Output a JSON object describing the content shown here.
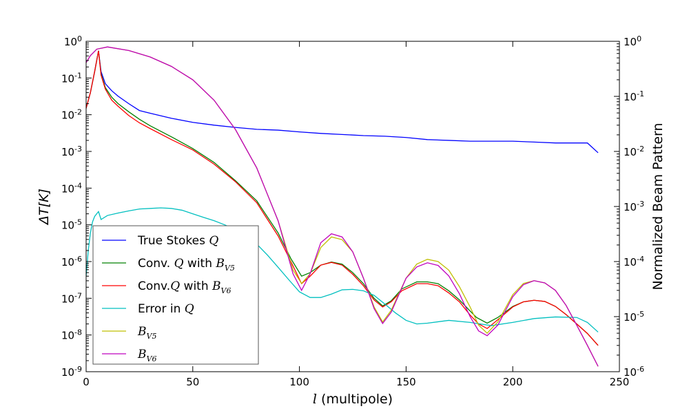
{
  "chart_data": {
    "type": "line",
    "xlabel_var": "l",
    "xlabel_text": " (multipole)",
    "ylabel_left": "ΔT[K]",
    "ylabel_right": "Normalized Beam Pattern",
    "xlim": [
      0,
      250
    ],
    "ylim_left": [
      1e-09,
      1
    ],
    "ylim_right": [
      1e-06,
      1
    ],
    "yscale": "log",
    "grid": false,
    "legend_position": "lower-left",
    "x_ticks": [
      "0",
      "50",
      "100",
      "150",
      "200",
      "250"
    ],
    "y_ticks_left": [
      {
        "base": "10",
        "exp": "0"
      },
      {
        "base": "10",
        "exp": "-1"
      },
      {
        "base": "10",
        "exp": "-2"
      },
      {
        "base": "10",
        "exp": "-3"
      },
      {
        "base": "10",
        "exp": "-4"
      },
      {
        "base": "10",
        "exp": "-5"
      },
      {
        "base": "10",
        "exp": "-6"
      },
      {
        "base": "10",
        "exp": "-7"
      },
      {
        "base": "10",
        "exp": "-8"
      },
      {
        "base": "10",
        "exp": "-9"
      }
    ],
    "y_ticks_right": [
      {
        "base": "10",
        "exp": "0"
      },
      {
        "base": "10",
        "exp": "-1"
      },
      {
        "base": "10",
        "exp": "-2"
      },
      {
        "base": "10",
        "exp": "-3"
      },
      {
        "base": "10",
        "exp": "-4"
      },
      {
        "base": "10",
        "exp": "-5"
      },
      {
        "base": "10",
        "exp": "-6"
      }
    ],
    "series": [
      {
        "name": "True Stokes Q",
        "legend_text": "True Stokes ",
        "legend_math": "Q",
        "legend_tail": "",
        "color": "#0000ff",
        "axis": "left",
        "points": [
          [
            0,
            0.015
          ],
          [
            2,
            0.04
          ],
          [
            4,
            0.15
          ],
          [
            5.8,
            0.55
          ],
          [
            7,
            0.15
          ],
          [
            9,
            0.07
          ],
          [
            12,
            0.045
          ],
          [
            15,
            0.032
          ],
          [
            20,
            0.02
          ],
          [
            25,
            0.013
          ],
          [
            30,
            0.011
          ],
          [
            40,
            0.008
          ],
          [
            50,
            0.0062
          ],
          [
            60,
            0.0052
          ],
          [
            70,
            0.0045
          ],
          [
            80,
            0.004
          ],
          [
            90,
            0.0038
          ],
          [
            100,
            0.0034
          ],
          [
            110,
            0.0031
          ],
          [
            120,
            0.0029
          ],
          [
            130,
            0.0027
          ],
          [
            140,
            0.0026
          ],
          [
            150,
            0.0024
          ],
          [
            160,
            0.0021
          ],
          [
            170,
            0.002
          ],
          [
            180,
            0.0019
          ],
          [
            190,
            0.0019
          ],
          [
            200,
            0.0019
          ],
          [
            210,
            0.0018
          ],
          [
            220,
            0.0017
          ],
          [
            230,
            0.0017
          ],
          [
            235,
            0.0017
          ],
          [
            240,
            0.00092
          ]
        ]
      },
      {
        "name": "Conv. Q with B_V5",
        "legend_text": "Conv. ",
        "legend_math": "Q",
        "legend_tail": " with ",
        "legend_sub_base": "B",
        "legend_sub": "V5",
        "color": "#008000",
        "axis": "left",
        "points": [
          [
            0,
            0.015
          ],
          [
            2,
            0.04
          ],
          [
            4,
            0.15
          ],
          [
            5.8,
            0.55
          ],
          [
            7,
            0.13
          ],
          [
            9,
            0.055
          ],
          [
            12,
            0.03
          ],
          [
            15,
            0.02
          ],
          [
            20,
            0.012
          ],
          [
            25,
            0.0075
          ],
          [
            30,
            0.005
          ],
          [
            40,
            0.0025
          ],
          [
            50,
            0.0012
          ],
          [
            60,
            0.0005
          ],
          [
            70,
            0.00016
          ],
          [
            80,
            4.5e-05
          ],
          [
            90,
            6e-06
          ],
          [
            96,
            1.2e-06
          ],
          [
            101,
            4e-07
          ],
          [
            105,
            5e-07
          ],
          [
            110,
            8e-07
          ],
          [
            115,
            9.7e-07
          ],
          [
            120,
            8.5e-07
          ],
          [
            125,
            5e-07
          ],
          [
            130,
            2.5e-07
          ],
          [
            135,
            1e-07
          ],
          [
            139,
            6.2e-08
          ],
          [
            143,
            8.5e-08
          ],
          [
            148,
            1.8e-07
          ],
          [
            155,
            2.8e-07
          ],
          [
            160,
            2.8e-07
          ],
          [
            165,
            2.5e-07
          ],
          [
            170,
            1.6e-07
          ],
          [
            175,
            9e-08
          ],
          [
            180,
            4.5e-08
          ],
          [
            183,
            3e-08
          ],
          [
            188,
            2.1e-08
          ],
          [
            193,
            3e-08
          ],
          [
            200,
            6e-08
          ],
          [
            205,
            8e-08
          ],
          [
            210,
            8.8e-08
          ],
          [
            215,
            8.2e-08
          ],
          [
            220,
            6e-08
          ],
          [
            225,
            3.6e-08
          ],
          [
            230,
            2e-08
          ],
          [
            235,
            1.1e-08
          ],
          [
            240,
            5.2e-09
          ]
        ]
      },
      {
        "name": "Conv.Q with B_V6",
        "legend_text": "Conv.",
        "legend_math": "Q",
        "legend_tail": " with ",
        "legend_sub_base": "B",
        "legend_sub": "V6",
        "color": "#ff0000",
        "axis": "left",
        "points": [
          [
            0,
            0.015
          ],
          [
            2,
            0.04
          ],
          [
            4,
            0.15
          ],
          [
            5.8,
            0.55
          ],
          [
            7,
            0.12
          ],
          [
            9,
            0.05
          ],
          [
            12,
            0.025
          ],
          [
            15,
            0.017
          ],
          [
            20,
            0.0095
          ],
          [
            25,
            0.006
          ],
          [
            30,
            0.0042
          ],
          [
            40,
            0.0021
          ],
          [
            50,
            0.0011
          ],
          [
            60,
            0.00045
          ],
          [
            70,
            0.00015
          ],
          [
            80,
            4e-05
          ],
          [
            90,
            5e-06
          ],
          [
            96,
            1e-06
          ],
          [
            101,
            2.5e-07
          ],
          [
            105,
            4e-07
          ],
          [
            110,
            8e-07
          ],
          [
            115,
            9.5e-07
          ],
          [
            120,
            8e-07
          ],
          [
            125,
            4.5e-07
          ],
          [
            130,
            2.2e-07
          ],
          [
            135,
            9e-08
          ],
          [
            139,
            5.8e-08
          ],
          [
            143,
            8e-08
          ],
          [
            148,
            1.6e-07
          ],
          [
            155,
            2.5e-07
          ],
          [
            160,
            2.5e-07
          ],
          [
            165,
            2.2e-07
          ],
          [
            170,
            1.4e-07
          ],
          [
            175,
            8e-08
          ],
          [
            180,
            3.5e-08
          ],
          [
            184,
            2e-08
          ],
          [
            188,
            1.5e-08
          ],
          [
            193,
            2.6e-08
          ],
          [
            200,
            5.8e-08
          ],
          [
            205,
            8e-08
          ],
          [
            210,
            8.8e-08
          ],
          [
            215,
            8.2e-08
          ],
          [
            220,
            6e-08
          ],
          [
            225,
            3.6e-08
          ],
          [
            230,
            2e-08
          ],
          [
            235,
            1.1e-08
          ],
          [
            240,
            5.2e-09
          ]
        ]
      },
      {
        "name": "Error in Q",
        "legend_text": "Error in ",
        "legend_math": "Q",
        "legend_tail": "",
        "color": "#00bfbf",
        "axis": "left",
        "points": [
          [
            0,
            4e-07
          ],
          [
            1,
            2e-06
          ],
          [
            2,
            6e-06
          ],
          [
            3,
            1.2e-05
          ],
          [
            4,
            1.7e-05
          ],
          [
            5.8,
            2.3e-05
          ],
          [
            7,
            1.4e-05
          ],
          [
            10,
            1.8e-05
          ],
          [
            15,
            2.1e-05
          ],
          [
            20,
            2.4e-05
          ],
          [
            25,
            2.7e-05
          ],
          [
            30,
            2.8e-05
          ],
          [
            35,
            2.9e-05
          ],
          [
            40,
            2.8e-05
          ],
          [
            45,
            2.5e-05
          ],
          [
            50,
            2e-05
          ],
          [
            55,
            1.6e-05
          ],
          [
            60,
            1.3e-05
          ],
          [
            65,
            1e-05
          ],
          [
            70,
            7.5e-06
          ],
          [
            75,
            5e-06
          ],
          [
            80,
            3e-06
          ],
          [
            85,
            1.5e-06
          ],
          [
            90,
            7e-07
          ],
          [
            95,
            3.2e-07
          ],
          [
            100,
            1.5e-07
          ],
          [
            105,
            1.05e-07
          ],
          [
            110,
            1.05e-07
          ],
          [
            115,
            1.3e-07
          ],
          [
            120,
            1.7e-07
          ],
          [
            125,
            1.75e-07
          ],
          [
            130,
            1.6e-07
          ],
          [
            135,
            1.2e-07
          ],
          [
            140,
            7e-08
          ],
          [
            145,
            4e-08
          ],
          [
            150,
            2.5e-08
          ],
          [
            155,
            2e-08
          ],
          [
            160,
            2.1e-08
          ],
          [
            170,
            2.5e-08
          ],
          [
            180,
            2.2e-08
          ],
          [
            190,
            1.8e-08
          ],
          [
            200,
            2.2e-08
          ],
          [
            210,
            2.8e-08
          ],
          [
            220,
            3.1e-08
          ],
          [
            230,
            3e-08
          ],
          [
            235,
            2.2e-08
          ],
          [
            240,
            1.2e-08
          ]
        ]
      },
      {
        "name": "B_V5",
        "legend_sub_base": "B",
        "legend_sub": "V5",
        "legend_text": "",
        "legend_math": "",
        "legend_tail": "",
        "color": "#bfbf00",
        "axis": "right",
        "points": [
          [
            0,
            0.41
          ],
          [
            2,
            0.55
          ],
          [
            5,
            0.72
          ],
          [
            10,
            0.79
          ],
          [
            20,
            0.68
          ],
          [
            30,
            0.52
          ],
          [
            40,
            0.35
          ],
          [
            50,
            0.2
          ],
          [
            60,
            0.085
          ],
          [
            70,
            0.025
          ],
          [
            80,
            0.005
          ],
          [
            90,
            0.00055
          ],
          [
            97,
            7e-05
          ],
          [
            101,
            4e-05
          ],
          [
            105,
            6e-05
          ],
          [
            110,
            0.00018
          ],
          [
            115,
            0.00028
          ],
          [
            120,
            0.00025
          ],
          [
            125,
            0.00015
          ],
          [
            130,
            5e-05
          ],
          [
            135,
            1.5e-05
          ],
          [
            139,
            8e-06
          ],
          [
            143,
            1.3e-05
          ],
          [
            150,
            5e-05
          ],
          [
            155,
            9e-05
          ],
          [
            160,
            0.00011
          ],
          [
            165,
            0.0001
          ],
          [
            170,
            7e-05
          ],
          [
            175,
            3.5e-05
          ],
          [
            180,
            1.5e-05
          ],
          [
            184,
            7e-06
          ],
          [
            188,
            5e-06
          ],
          [
            193,
            8e-06
          ],
          [
            200,
            2.5e-05
          ],
          [
            205,
            4e-05
          ],
          [
            210,
            4.5e-05
          ],
          [
            215,
            4.1e-05
          ],
          [
            220,
            3e-05
          ],
          [
            225,
            1.6e-05
          ],
          [
            230,
            7e-06
          ],
          [
            235,
            3e-06
          ],
          [
            240,
            1.25e-06
          ]
        ]
      },
      {
        "name": "B_V6",
        "legend_sub_base": "B",
        "legend_sub": "V6",
        "legend_text": "",
        "legend_math": "",
        "legend_tail": "",
        "color": "#bf00bf",
        "axis": "right",
        "points": [
          [
            0,
            0.41
          ],
          [
            2,
            0.55
          ],
          [
            5,
            0.72
          ],
          [
            10,
            0.79
          ],
          [
            20,
            0.68
          ],
          [
            30,
            0.52
          ],
          [
            40,
            0.35
          ],
          [
            50,
            0.2
          ],
          [
            60,
            0.085
          ],
          [
            70,
            0.025
          ],
          [
            80,
            0.005
          ],
          [
            90,
            0.00055
          ],
          [
            97,
            6e-05
          ],
          [
            101,
            3e-05
          ],
          [
            105,
            6e-05
          ],
          [
            110,
            0.00022
          ],
          [
            115,
            0.00032
          ],
          [
            120,
            0.00028
          ],
          [
            125,
            0.00015
          ],
          [
            130,
            5e-05
          ],
          [
            135,
            1.4e-05
          ],
          [
            139,
            7.5e-06
          ],
          [
            143,
            1.2e-05
          ],
          [
            150,
            5e-05
          ],
          [
            155,
            8e-05
          ],
          [
            160,
            9.5e-05
          ],
          [
            165,
            8.5e-05
          ],
          [
            170,
            5.5e-05
          ],
          [
            175,
            2.6e-05
          ],
          [
            180,
            1e-05
          ],
          [
            184,
            5.5e-06
          ],
          [
            188,
            4.5e-06
          ],
          [
            193,
            7e-06
          ],
          [
            200,
            2.3e-05
          ],
          [
            205,
            3.8e-05
          ],
          [
            210,
            4.5e-05
          ],
          [
            215,
            4.1e-05
          ],
          [
            220,
            3e-05
          ],
          [
            225,
            1.6e-05
          ],
          [
            230,
            7e-06
          ],
          [
            235,
            3e-06
          ],
          [
            240,
            1.25e-06
          ]
        ]
      }
    ]
  }
}
